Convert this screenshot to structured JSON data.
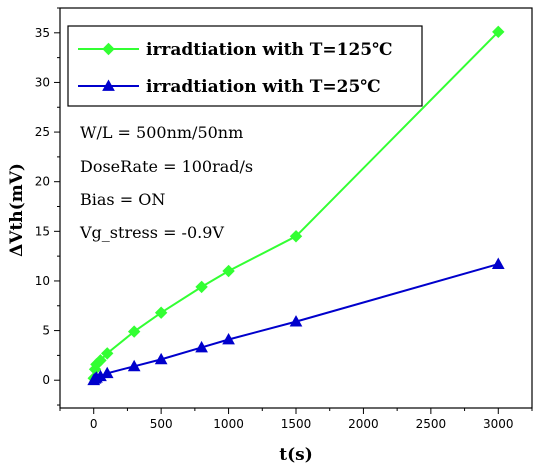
{
  "chart_data": {
    "type": "line",
    "title": "",
    "xlabel": "t(s)",
    "ylabel": "ΔVth(mV)",
    "xlim": [
      -250,
      3250
    ],
    "ylim": [
      -2.8,
      37.5
    ],
    "xticks": [
      0,
      500,
      1000,
      1500,
      2000,
      2500,
      3000
    ],
    "yticks": [
      0,
      5,
      10,
      15,
      20,
      25,
      30,
      35
    ],
    "grid": false,
    "legend_position": "top-left",
    "series": [
      {
        "name": "irradtiation with T=125℃",
        "color": "#33ff33",
        "marker": "diamond",
        "x": [
          0,
          10,
          20,
          50,
          100,
          300,
          500,
          800,
          1000,
          1500,
          3000
        ],
        "y": [
          0.2,
          1.1,
          1.6,
          2.0,
          2.7,
          4.9,
          6.8,
          9.4,
          11.0,
          14.5,
          35.1
        ]
      },
      {
        "name": "irradtiation with T=25℃",
        "color": "#0000cc",
        "marker": "triangle",
        "x": [
          0,
          10,
          20,
          50,
          100,
          300,
          500,
          800,
          1000,
          1500,
          3000
        ],
        "y": [
          0.0,
          0.15,
          0.25,
          0.4,
          0.7,
          1.4,
          2.1,
          3.3,
          4.1,
          5.9,
          11.7
        ]
      }
    ],
    "annotations": [
      "W/L = 500nm/50nm",
      "DoseRate = 100rad/s",
      "Bias = ON",
      "Vg_stress = -0.9V"
    ]
  }
}
